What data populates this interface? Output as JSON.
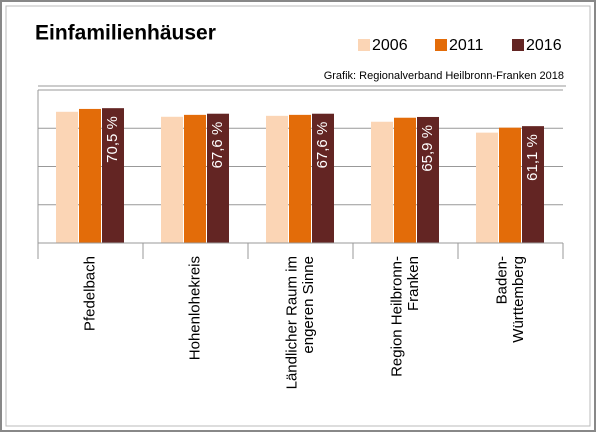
{
  "chart_data": {
    "type": "bar",
    "title": "Einfamilienhäuser",
    "source": "Grafik: Regionalverband Heilbronn-Franken 2018",
    "categories": [
      "Pfedelbach",
      "Hohenlohekreis",
      "Ländlicher Raum im\nengeren Sinne",
      "Region Heilbronn-\nFranken",
      "Baden-\nWürttemberg"
    ],
    "series": [
      {
        "name": "2006",
        "color": "#fbd5b5",
        "values": [
          68.6,
          66.0,
          66.5,
          63.4,
          57.7
        ]
      },
      {
        "name": "2011",
        "color": "#e36c09",
        "values": [
          70.1,
          67.0,
          67.0,
          65.5,
          60.3
        ]
      },
      {
        "name": "2016",
        "color": "#632523",
        "values": [
          70.5,
          67.6,
          67.6,
          65.9,
          61.1
        ],
        "value_labels": [
          "70,5 %",
          "67,6 %",
          "67,6 %",
          "65,9 %",
          "61,1 %"
        ]
      }
    ],
    "ylim": [
      0,
      80
    ],
    "yticks": [
      0,
      20,
      40,
      60,
      80
    ],
    "grid": true,
    "legend": "top-right"
  }
}
